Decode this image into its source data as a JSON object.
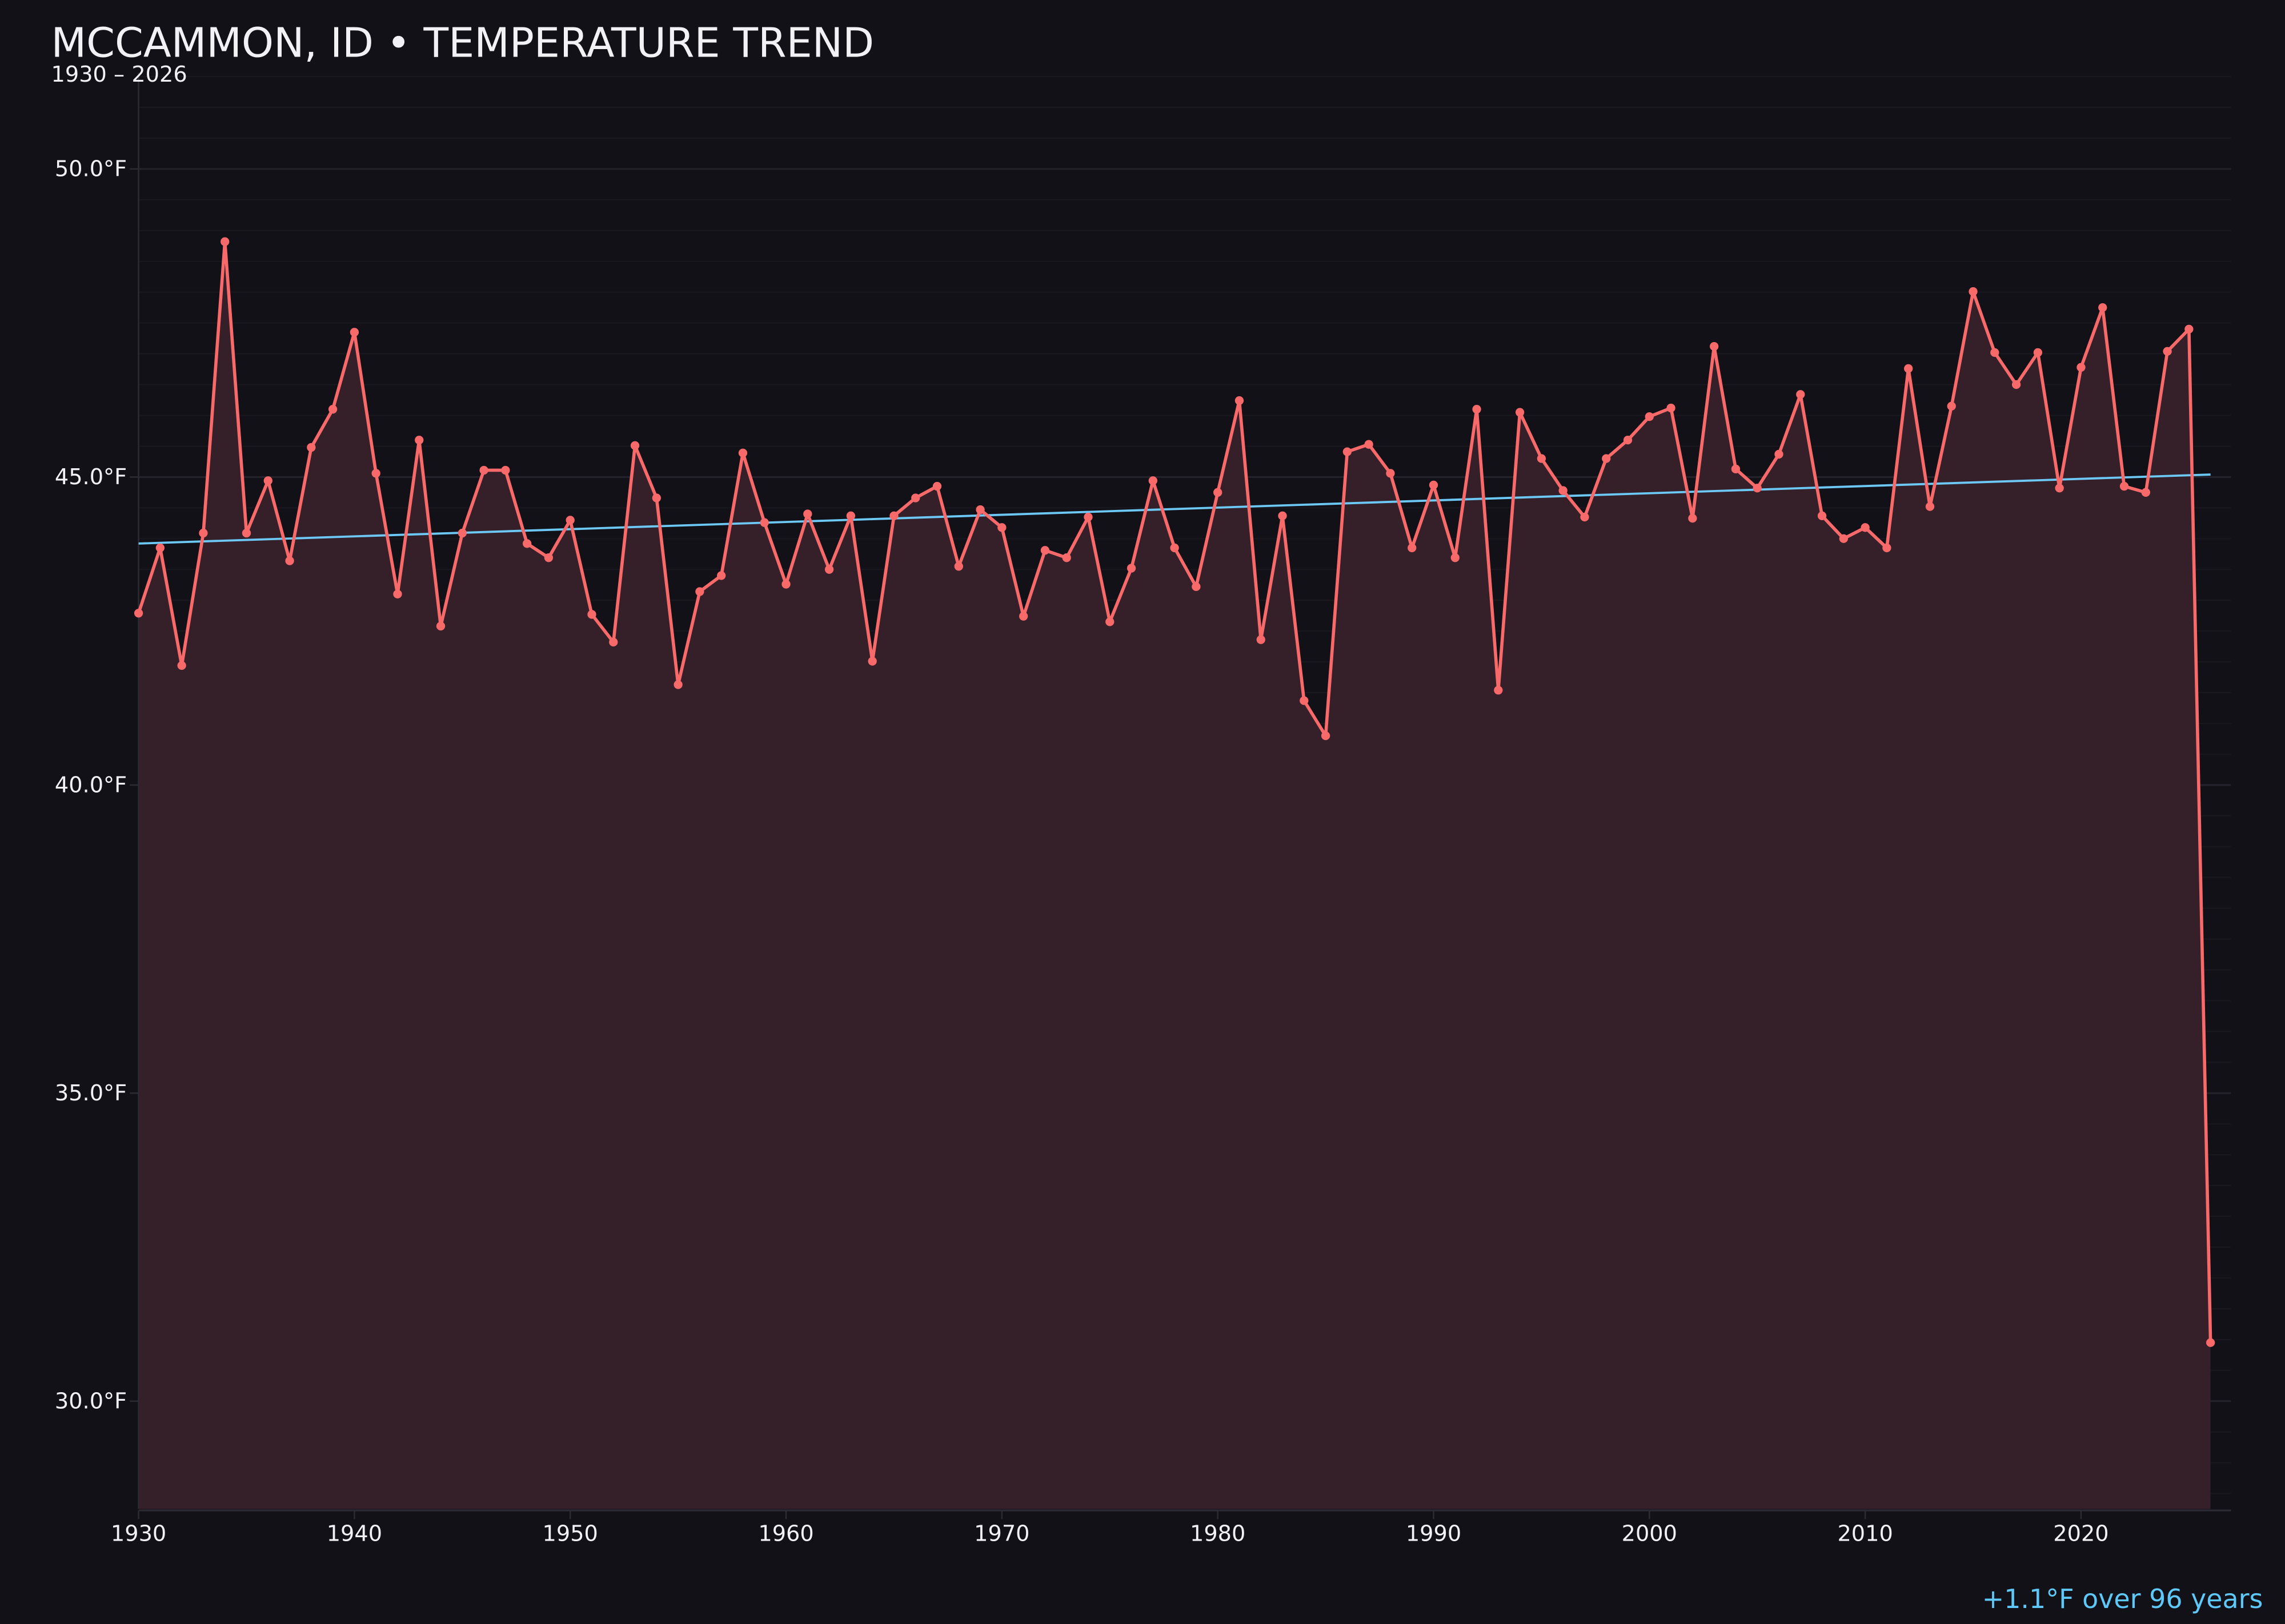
{
  "chart_data": {
    "type": "line",
    "title": "MCCAMMON, ID • TEMPERATURE TREND",
    "subtitle": "1930 – 2026",
    "xlabel": "",
    "ylabel": "",
    "xlim": [
      1930,
      2026
    ],
    "ylim": [
      28.25,
      51.6
    ],
    "grid": true,
    "x_ticks": [
      1930,
      1940,
      1950,
      1960,
      1970,
      1980,
      1990,
      2000,
      2010,
      2020
    ],
    "x_tick_labels": [
      "1930",
      "1940",
      "1950",
      "1960",
      "1970",
      "1980",
      "1990",
      "2000",
      "2010",
      "2020"
    ],
    "y_ticks": [
      30,
      35,
      40,
      45,
      50
    ],
    "y_tick_labels": [
      "30.0°F",
      "35.0°F",
      "40.0°F",
      "45.0°F",
      "50.0°F"
    ],
    "series": [
      {
        "name": "Annual mean temperature",
        "color": "#f86a6a",
        "fill_color": "#35202a",
        "x": [
          1930,
          1931,
          1932,
          1933,
          1934,
          1935,
          1936,
          1937,
          1938,
          1939,
          1940,
          1941,
          1942,
          1943,
          1944,
          1945,
          1946,
          1947,
          1948,
          1949,
          1950,
          1951,
          1952,
          1953,
          1954,
          1955,
          1956,
          1957,
          1958,
          1959,
          1960,
          1961,
          1962,
          1963,
          1964,
          1965,
          1966,
          1967,
          1968,
          1969,
          1970,
          1971,
          1972,
          1973,
          1974,
          1975,
          1976,
          1977,
          1978,
          1979,
          1980,
          1981,
          1982,
          1983,
          1984,
          1985,
          1986,
          1987,
          1988,
          1989,
          1990,
          1991,
          1992,
          1993,
          1994,
          1995,
          1996,
          1997,
          1998,
          1999,
          2000,
          2001,
          2002,
          2003,
          2004,
          2005,
          2006,
          2007,
          2008,
          2009,
          2010,
          2011,
          2012,
          2013,
          2014,
          2015,
          2016,
          2017,
          2018,
          2019,
          2020,
          2021,
          2022,
          2023,
          2024,
          2025,
          2026
        ],
        "values": [
          42.79,
          43.85,
          41.94,
          44.09,
          48.82,
          44.09,
          44.94,
          43.64,
          45.48,
          46.1,
          47.35,
          45.06,
          43.1,
          45.6,
          42.58,
          44.09,
          45.11,
          45.11,
          43.92,
          43.69,
          44.3,
          42.77,
          42.32,
          45.51,
          44.66,
          41.63,
          43.14,
          43.4,
          45.39,
          44.26,
          43.26,
          44.4,
          43.5,
          44.37,
          42.01,
          44.37,
          44.66,
          44.85,
          43.55,
          44.47,
          44.18,
          42.74,
          43.81,
          43.69,
          44.35,
          42.65,
          43.52,
          44.94,
          43.85,
          43.22,
          44.75,
          46.24,
          42.36,
          44.37,
          41.37,
          40.8,
          45.41,
          45.53,
          45.06,
          43.85,
          44.87,
          43.69,
          46.1,
          41.54,
          46.05,
          45.3,
          44.78,
          44.35,
          45.3,
          45.6,
          45.98,
          46.12,
          44.33,
          47.12,
          45.13,
          44.82,
          45.37,
          46.34,
          44.37,
          44.0,
          44.18,
          43.85,
          46.76,
          44.52,
          46.15,
          48.01,
          47.02,
          46.5,
          47.02,
          44.82,
          46.78,
          47.75,
          44.85,
          44.75,
          47.04,
          47.4,
          30.95
        ]
      },
      {
        "name": "Linear trend",
        "color": "#6cc8f4",
        "x": [
          1930,
          2026
        ],
        "values": [
          43.92,
          45.04
        ]
      }
    ],
    "annotations": [
      {
        "text": "+1.1°F over 96 years",
        "color": "#5ec8f8",
        "placement": "bottom-right"
      }
    ]
  }
}
